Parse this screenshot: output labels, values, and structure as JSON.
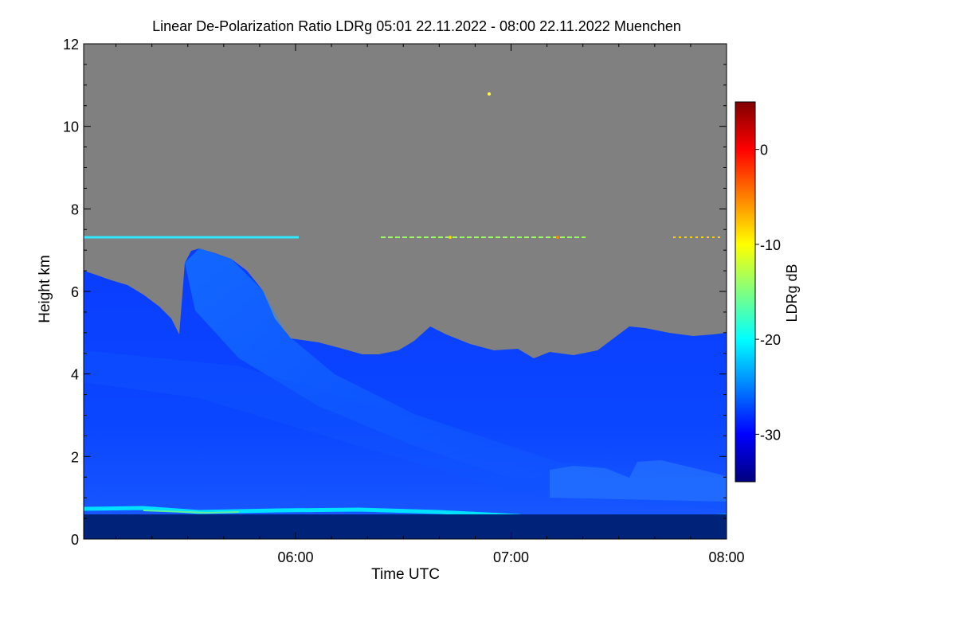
{
  "chart_data": {
    "type": "heatmap",
    "title": "Linear De-Polarization Ratio LDRg   05:01 22.11.2022 - 08:00 22.11.2022 Muenchen",
    "xlabel": "Time UTC",
    "ylabel": "Height km",
    "x_range": [
      "05:01",
      "08:00"
    ],
    "x_ticks": [
      "06:00",
      "07:00",
      "08:00"
    ],
    "ylim": [
      0,
      12
    ],
    "y_ticks": [
      0,
      2,
      4,
      6,
      8,
      10,
      12
    ],
    "colorbar": {
      "label": "LDRg dB",
      "range": [
        -35,
        5
      ],
      "ticks": [
        0,
        -10,
        -20,
        -30
      ],
      "colormap": [
        "#00007f",
        "#0000ff",
        "#0080ff",
        "#00ffff",
        "#80ff80",
        "#ffff00",
        "#ff8000",
        "#ff0000",
        "#7f0000"
      ]
    },
    "no_data_color": "#808080",
    "features": [
      {
        "name": "surface layer",
        "height_km": [
          0,
          0.55
        ],
        "ldr_db": -35
      },
      {
        "name": "aerosol layer top",
        "height_km": 0.6,
        "ldr_db": -24
      },
      {
        "name": "precipitation / cloud body",
        "height_km": [
          0.7,
          5.0
        ],
        "ldr_db": -30
      },
      {
        "name": "fall streak",
        "time": "05:30-06:00",
        "height_km": [
          4.5,
          7.0
        ],
        "ldr_db": -25
      },
      {
        "name": "thin cloud layer",
        "height_km": 7.3,
        "ldr_db": -15
      }
    ]
  }
}
